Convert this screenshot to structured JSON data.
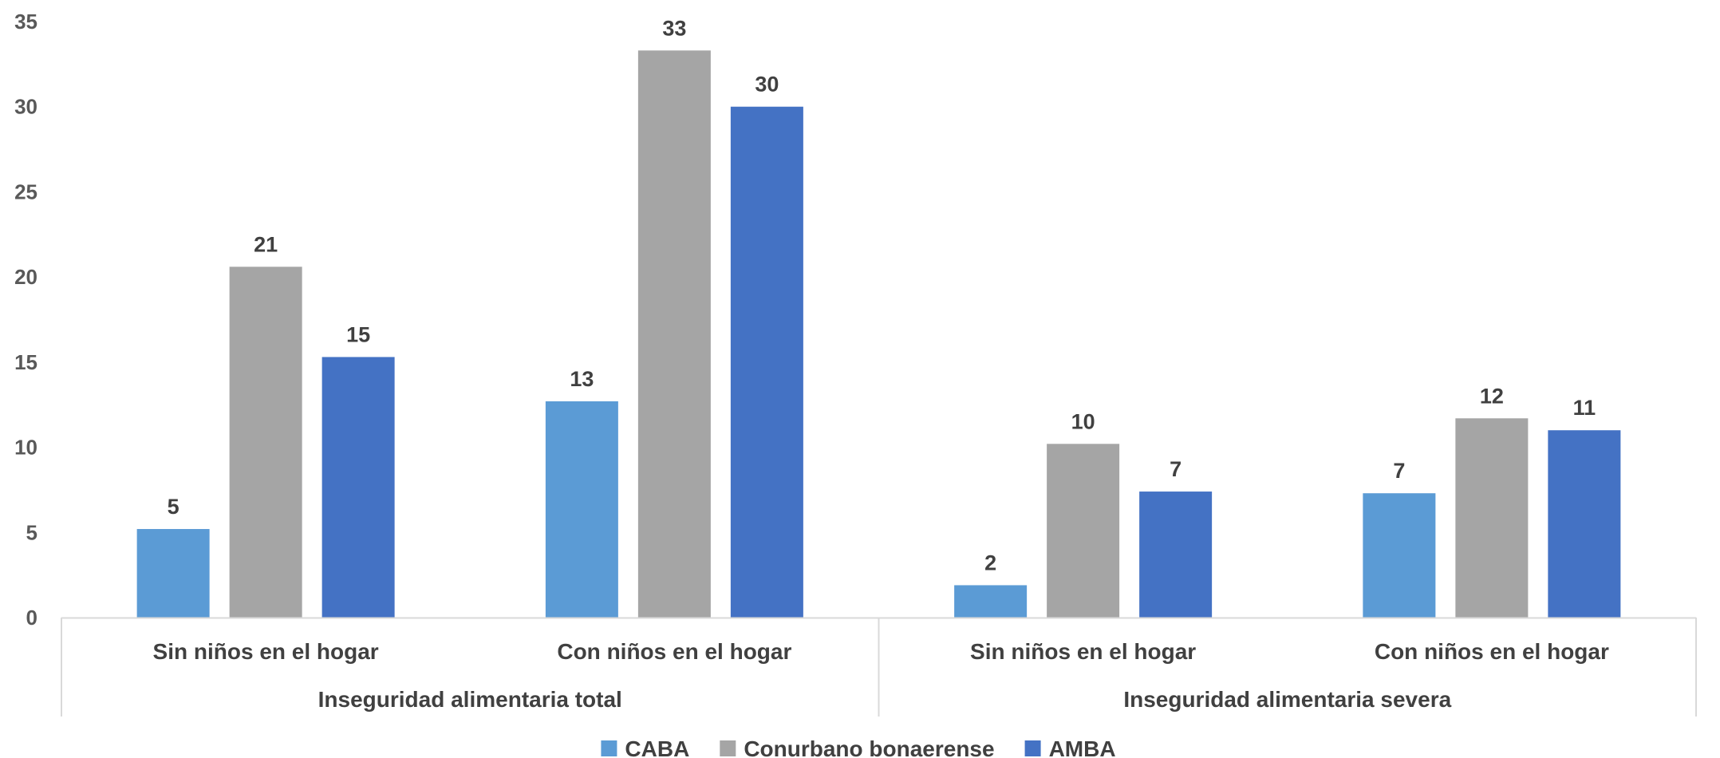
{
  "chart_data": {
    "type": "bar",
    "groups": [
      {
        "label": "Inseguridad alimentaria total",
        "categories": [
          "Sin niños en el hogar",
          "Con niños en el hogar"
        ]
      },
      {
        "label": "Inseguridad alimentaria severa",
        "categories": [
          "Sin niños en el hogar",
          "Con niños en el hogar"
        ]
      }
    ],
    "categories": [
      "Sin niños en el hogar",
      "Con niños en el hogar",
      "Sin niños en el hogar",
      "Con niños en el hogar"
    ],
    "series": [
      {
        "name": "CABA",
        "color": "#5B9BD5",
        "values": [
          5.2,
          12.7,
          1.9,
          7.3
        ],
        "labels": [
          "5",
          "13",
          "2",
          "7"
        ]
      },
      {
        "name": "Conurbano bonaerense",
        "color": "#A5A5A5",
        "values": [
          20.6,
          33.3,
          10.2,
          11.7
        ],
        "labels": [
          "21",
          "33",
          "10",
          "12"
        ]
      },
      {
        "name": "AMBA",
        "color": "#4472C4",
        "values": [
          15.3,
          30.0,
          7.4,
          11.0
        ],
        "labels": [
          "15",
          "30",
          "7",
          "11"
        ]
      }
    ],
    "yticks": [
      "0",
      "5",
      "10",
      "15",
      "20",
      "25",
      "30",
      "35"
    ],
    "ylim": [
      0,
      35
    ],
    "grid": false,
    "legend": "bottom",
    "title": "",
    "xlabel": "",
    "ylabel": ""
  }
}
